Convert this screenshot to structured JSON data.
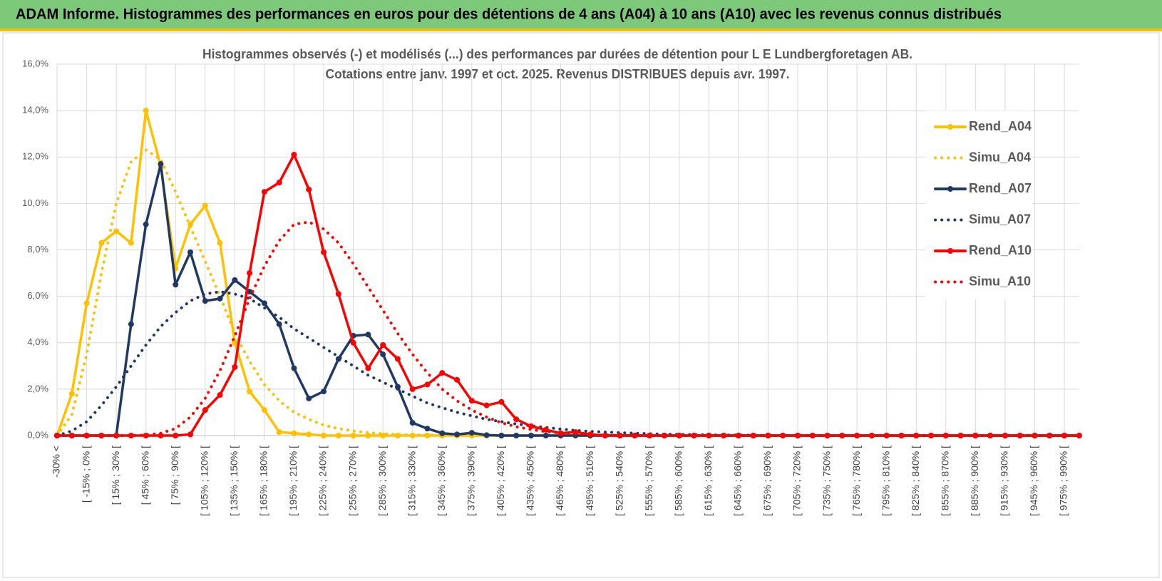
{
  "header": {
    "title": "ADAM Informe. Histogrammes des performances en euros pour des détentions de 4 ans (A04) à 10 ans (A10) avec les revenus connus distribués"
  },
  "chart_data": {
    "type": "line",
    "title": "Histogrammes observés (-) et modélisés (...) des performances par durées de détention pour L E Lundbergforetagen AB.",
    "subtitle": "Cotations entre janv. 1997 et oct. 2025. Revenus DISTRIBUES depuis avr. 1997.",
    "categories": [
      "-30% <",
      null,
      "[ -15% ; 0% [",
      null,
      "[ 15% ; 30% [",
      null,
      "[ 45% ; 60% [",
      null,
      "[ 75% ; 90% [",
      null,
      "[ 105% ; 120% [",
      null,
      "[ 135% ; 150% [",
      null,
      "[ 165% ; 180% [",
      null,
      "[ 195% ; 210% [",
      null,
      "[ 225% ; 240% [",
      null,
      "[ 255% ; 270% [",
      null,
      "[ 285% ; 300% [",
      null,
      "[ 315% ; 330% [",
      null,
      "[ 345% ; 360% [",
      null,
      "[ 375% ; 390% [",
      null,
      "[ 405% ; 420% [",
      null,
      "[ 435% ; 450% [",
      null,
      "[ 465% ; 480% [",
      null,
      "[ 495% ; 510% [",
      null,
      "[ 525% ; 540% [",
      null,
      "[ 555% ; 570% [",
      null,
      "[ 585% ; 600% [",
      null,
      "[ 615% ; 630% [",
      null,
      "[ 645% ; 660% [",
      null,
      "[ 675% ; 690% [",
      null,
      "[ 705% ; 720% [",
      null,
      "[ 735% ; 750% [",
      null,
      "[ 765% ; 780% [",
      null,
      "[ 795% ; 810% [",
      null,
      "[ 825% ; 840% [",
      null,
      "[ 855% ; 870% [",
      null,
      "[ 885% ; 900% [",
      null,
      "[ 915% ; 930% [",
      null,
      "[ 945% ; 960% [",
      null,
      "[ 975% ; 990% [",
      null
    ],
    "series": [
      {
        "name": "Rend_A04",
        "color": "#FFC000",
        "style": "solid",
        "values": [
          0,
          1.8,
          5.7,
          8.3,
          8.8,
          8.3,
          14.0,
          11.6,
          7.2,
          9.1,
          9.9,
          8.3,
          4.0,
          1.9,
          1.1,
          0.15,
          0.1,
          0.05,
          0,
          0,
          0,
          0,
          0,
          0,
          0,
          0,
          0,
          0,
          0,
          0,
          0,
          0,
          0,
          0,
          0,
          0,
          0,
          0,
          0,
          0,
          0,
          0,
          0,
          0,
          0,
          0,
          0,
          0,
          0,
          0,
          0,
          0,
          0,
          0,
          0,
          0,
          0,
          0,
          0,
          0,
          0,
          0,
          0,
          0,
          0,
          0,
          0,
          0,
          0,
          0
        ]
      },
      {
        "name": "Simu_A04",
        "color": "#FFC000",
        "style": "dotted",
        "values": [
          0,
          0.9,
          3.5,
          7.0,
          10.0,
          11.8,
          12.3,
          11.9,
          10.5,
          9.0,
          7.5,
          6.0,
          4.4,
          3.2,
          2.2,
          1.5,
          1.0,
          0.7,
          0.45,
          0.3,
          0.2,
          0.12,
          0.08,
          0.05,
          0.03,
          0.02,
          0.01,
          0.01,
          0,
          0,
          0,
          0,
          0,
          0,
          0,
          0,
          0,
          0,
          0,
          0,
          0,
          0,
          0,
          0,
          0,
          0,
          0,
          0,
          0,
          0,
          0,
          0,
          0,
          0,
          0,
          0,
          0,
          0,
          0,
          0,
          0,
          0,
          0,
          0,
          0,
          0,
          0,
          0,
          0,
          0
        ]
      },
      {
        "name": "Rend_A07",
        "color": "#1F3864",
        "style": "solid",
        "values": [
          0,
          0,
          0,
          0,
          0,
          4.8,
          9.1,
          11.7,
          6.5,
          7.9,
          5.8,
          5.9,
          6.7,
          6.2,
          5.7,
          4.8,
          2.9,
          1.6,
          1.9,
          3.3,
          4.3,
          4.35,
          3.5,
          2.1,
          0.55,
          0.3,
          0.1,
          0.05,
          0.12,
          0.02,
          0,
          0,
          0,
          0,
          0,
          0,
          0,
          0,
          0,
          0,
          0,
          0,
          0,
          0,
          0,
          0,
          0,
          0,
          0,
          0,
          0,
          0,
          0,
          0,
          0,
          0,
          0,
          0,
          0,
          0,
          0,
          0,
          0,
          0,
          0,
          0,
          0,
          0,
          0,
          0
        ]
      },
      {
        "name": "Simu_A07",
        "color": "#1F3864",
        "style": "dotted",
        "values": [
          0,
          0.2,
          0.6,
          1.3,
          2.1,
          3.0,
          3.9,
          4.7,
          5.3,
          5.8,
          6.1,
          6.2,
          6.1,
          5.9,
          5.5,
          5.1,
          4.6,
          4.2,
          3.8,
          3.4,
          3.0,
          2.6,
          2.3,
          2.0,
          1.7,
          1.4,
          1.2,
          1.0,
          0.85,
          0.7,
          0.6,
          0.5,
          0.42,
          0.35,
          0.28,
          0.22,
          0.18,
          0.15,
          0.12,
          0.1,
          0.08,
          0.06,
          0.05,
          0.04,
          0.03,
          0.02,
          0.02,
          0.01,
          0,
          0,
          0,
          0,
          0,
          0,
          0,
          0,
          0,
          0,
          0,
          0,
          0,
          0,
          0,
          0,
          0,
          0,
          0,
          0,
          0,
          0
        ]
      },
      {
        "name": "Rend_A10",
        "color": "#FF0000",
        "style": "solid",
        "values": [
          0,
          0,
          0,
          0,
          0,
          0,
          0,
          0,
          0,
          0.05,
          1.1,
          1.75,
          2.95,
          7.0,
          10.5,
          10.9,
          12.1,
          10.6,
          7.9,
          6.1,
          4.0,
          2.9,
          3.9,
          3.3,
          2.0,
          2.2,
          2.7,
          2.4,
          1.5,
          1.3,
          1.45,
          0.7,
          0.4,
          0.25,
          0.1,
          0.15,
          0.05,
          0,
          0,
          0,
          0,
          0,
          0,
          0,
          0,
          0,
          0,
          0,
          0,
          0,
          0,
          0,
          0,
          0,
          0,
          0,
          0,
          0,
          0,
          0,
          0,
          0,
          0,
          0,
          0,
          0,
          0,
          0,
          0,
          0
        ]
      },
      {
        "name": "Simu_A10",
        "color": "#FF0000",
        "style": "dotted",
        "values": [
          0,
          0,
          0,
          0,
          0,
          0,
          0.02,
          0.1,
          0.3,
          0.8,
          1.6,
          2.8,
          4.3,
          5.9,
          7.3,
          8.4,
          9.1,
          9.2,
          8.9,
          8.3,
          7.4,
          6.4,
          5.4,
          4.4,
          3.5,
          2.7,
          2.0,
          1.5,
          1.1,
          0.8,
          0.55,
          0.38,
          0.26,
          0.17,
          0.11,
          0.07,
          0.04,
          0.02,
          0.01,
          0,
          0,
          0,
          0,
          0,
          0,
          0,
          0,
          0,
          0,
          0,
          0,
          0,
          0,
          0,
          0,
          0,
          0,
          0,
          0,
          0,
          0,
          0,
          0,
          0,
          0,
          0,
          0,
          0,
          0,
          0
        ]
      }
    ],
    "ylim": [
      0,
      16
    ],
    "yticks": [
      {
        "value": 0,
        "label": "0,0%"
      },
      {
        "value": 2,
        "label": "2,0%"
      },
      {
        "value": 4,
        "label": "4,0%"
      },
      {
        "value": 6,
        "label": "6,0%"
      },
      {
        "value": 8,
        "label": "8,0%"
      },
      {
        "value": 10,
        "label": "10,0%"
      },
      {
        "value": 12,
        "label": "12,0%"
      },
      {
        "value": 14,
        "label": "14,0%"
      },
      {
        "value": 16,
        "label": "16,0%"
      }
    ],
    "grid": true,
    "legend": "right"
  }
}
